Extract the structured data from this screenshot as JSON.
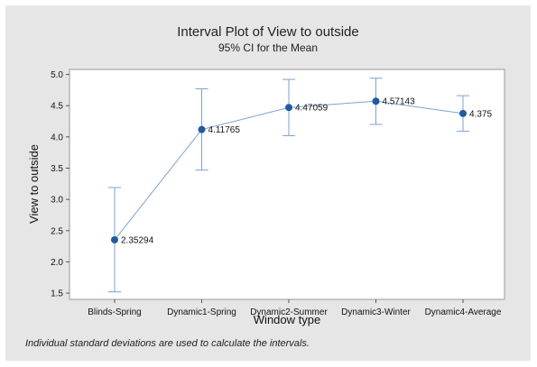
{
  "chart_data": {
    "type": "interval",
    "title": "Interval Plot of View to outside",
    "subtitle": "95% CI for the Mean",
    "xlabel": "Window type",
    "ylabel": "View to outside",
    "categories": [
      "Blinds-Spring",
      "Dynamic1-Spring",
      "Dynamic2-Summer",
      "Dynamic3-Winter",
      "Dynamic4-Average"
    ],
    "means": [
      2.35294,
      4.11765,
      4.47059,
      4.57143,
      4.375
    ],
    "mean_labels": [
      "2.35294",
      "4.11765",
      "4.47059",
      "4.57143",
      "4.375"
    ],
    "ci_lower": [
      1.52,
      3.47,
      4.02,
      4.2,
      4.09
    ],
    "ci_upper": [
      3.19,
      4.77,
      4.92,
      4.94,
      4.66
    ],
    "ylim": [
      1.4,
      5.08
    ],
    "yticks": [
      "1.5",
      "2.0",
      "2.5",
      "3.0",
      "3.5",
      "4.0",
      "4.5",
      "5.0"
    ],
    "grid": false,
    "colors": {
      "marker": "#1f5aa6",
      "line": "#7aa3d6",
      "whisker": "#7aa3d6"
    },
    "footnote": "Individual standard deviations are used to calculate the intervals."
  }
}
